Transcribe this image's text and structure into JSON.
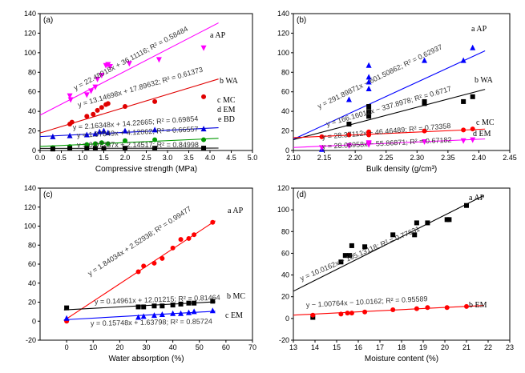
{
  "chart_data": [
    {
      "type": "scatter",
      "panel": "(a)",
      "xlabel": "Compressive strength (MPa)",
      "ylabel": "",
      "xlim": [
        0.0,
        5.0
      ],
      "ylim": [
        0,
        140
      ],
      "xticks": [
        0.0,
        0.5,
        1.0,
        1.5,
        2.0,
        2.5,
        3.0,
        3.5,
        4.0,
        4.5,
        5.0
      ],
      "yticks": [
        0,
        20,
        40,
        60,
        80,
        100,
        120,
        140
      ],
      "series": [
        {
          "name": "a AP",
          "color": "#ff00ff",
          "marker": "tri-down",
          "points": [
            [
              0.7,
              56
            ],
            [
              0.72,
              52
            ],
            [
              1.1,
              57
            ],
            [
              1.2,
              61
            ],
            [
              1.3,
              65
            ],
            [
              1.35,
              73
            ],
            [
              1.45,
              77
            ],
            [
              1.55,
              87
            ],
            [
              1.6,
              88
            ],
            [
              1.65,
              86
            ],
            [
              2.1,
              89
            ],
            [
              2.8,
              93
            ],
            [
              3.85,
              105
            ]
          ],
          "fit": {
            "slope": 22.48018,
            "intercept": 36.11116
          },
          "fit_range": [
            0.0,
            4.2
          ],
          "line_color": "#ff00ff",
          "equation": "y = 22.48018x + 36.11116; R² = 0.58484"
        },
        {
          "name": "b WA",
          "color": "#e00000",
          "marker": "circle",
          "points": [
            [
              0.7,
              27
            ],
            [
              0.75,
              29
            ],
            [
              1.1,
              35
            ],
            [
              1.25,
              37
            ],
            [
              1.35,
              41
            ],
            [
              1.45,
              44
            ],
            [
              1.55,
              47
            ],
            [
              1.6,
              48
            ],
            [
              2.0,
              45
            ],
            [
              2.7,
              50
            ],
            [
              3.85,
              55
            ]
          ],
          "fit": {
            "slope": 13.14698,
            "intercept": 17.89632
          },
          "fit_range": [
            0.0,
            4.2
          ],
          "line_color": "#e00000",
          "equation": "y = 13.14698x + 17.89632; R² = 0.61373"
        },
        {
          "name": "c MC",
          "color": "#0000dd",
          "marker": "tri-up",
          "points": [
            [
              0.3,
              14
            ],
            [
              0.7,
              15
            ],
            [
              1.1,
              16
            ],
            [
              1.3,
              17
            ],
            [
              1.4,
              19
            ],
            [
              1.5,
              20
            ],
            [
              1.6,
              18
            ],
            [
              2.0,
              20
            ],
            [
              2.7,
              21
            ],
            [
              3.85,
              22
            ]
          ],
          "fit": {
            "slope": 2.16348,
            "intercept": 14.22665
          },
          "fit_range": [
            0.0,
            4.2
          ],
          "line_color": "#0000dd",
          "equation": "y = 2.16348x + 14.22665; R² = 0.69854"
        },
        {
          "name": "d EM",
          "color": "#009900",
          "marker": "circle",
          "points": [
            [
              0.3,
              3
            ],
            [
              0.7,
              4
            ],
            [
              1.1,
              6
            ],
            [
              1.3,
              7
            ],
            [
              1.45,
              8
            ],
            [
              1.6,
              7
            ],
            [
              2.0,
              10
            ],
            [
              2.7,
              11
            ],
            [
              3.85,
              11
            ]
          ],
          "fit": {
            "slope": 1.97849,
            "intercept": 4.12062
          },
          "fit_range": [
            0.0,
            4.2
          ],
          "line_color": "#009900",
          "equation": "y = 1.97849x + 4.12062; R² = 0.66557"
        },
        {
          "name": "e BD",
          "color": "#000000",
          "marker": "square",
          "points": [
            [
              0.3,
              1.5
            ],
            [
              0.7,
              2
            ],
            [
              1.1,
              2.2
            ],
            [
              1.3,
              2.3
            ],
            [
              1.5,
              2.2
            ],
            [
              2.0,
              2.3
            ],
            [
              2.7,
              2.3
            ],
            [
              3.85,
              2.4
            ]
          ],
          "fit": {
            "slope": 0.07237,
            "intercept": 2.14517
          },
          "fit_range": [
            0.0,
            4.2
          ],
          "line_color": "#000000",
          "equation": "y = 0.07237x + 2.14517; R² = 0.84998"
        }
      ]
    },
    {
      "type": "scatter",
      "panel": "(b)",
      "xlabel": "Bulk density (g/cm³)",
      "ylabel": "",
      "xlim": [
        2.1,
        2.45
      ],
      "ylim": [
        0,
        140
      ],
      "xticks": [
        2.1,
        2.15,
        2.2,
        2.25,
        2.3,
        2.35,
        2.4,
        2.45
      ],
      "yticks": [
        0,
        20,
        40,
        60,
        80,
        100,
        120,
        140
      ],
      "series": [
        {
          "name": "a AP",
          "color": "#0000ff",
          "marker": "tri-up",
          "points": [
            [
              2.146,
              1
            ],
            [
              2.19,
              52
            ],
            [
              2.222,
              87
            ],
            [
              2.222,
              75
            ],
            [
              2.222,
              70
            ],
            [
              2.222,
              63
            ],
            [
              2.312,
              92
            ],
            [
              2.375,
              92
            ],
            [
              2.39,
              105
            ]
          ],
          "fit": {
            "slope": 291.89871,
            "intercept": -601.50862
          },
          "fit_range": [
            2.1,
            2.41
          ],
          "line_color": "#0000ff",
          "equation": "y = 291.89871x − 601.50862; R² = 0.62937"
        },
        {
          "name": "b WA",
          "color": "#000000",
          "marker": "square",
          "points": [
            [
              2.19,
              27
            ],
            [
              2.222,
              45
            ],
            [
              2.222,
              40
            ],
            [
              2.222,
              35
            ],
            [
              2.312,
              50
            ],
            [
              2.312,
              48
            ],
            [
              2.375,
              50
            ],
            [
              2.39,
              55
            ]
          ],
          "fit": {
            "slope": 166.16017,
            "intercept": -337.8978
          },
          "fit_range": [
            2.1,
            2.41
          ],
          "line_color": "#000000",
          "equation": "y = 166.16017x − 337.8978; R² = 0.6717"
        },
        {
          "name": "c MC",
          "color": "#ff0000",
          "marker": "circle",
          "points": [
            [
              2.146,
              14
            ],
            [
              2.19,
              16
            ],
            [
              2.222,
              16
            ],
            [
              2.222,
              18
            ],
            [
              2.222,
              19
            ],
            [
              2.312,
              20
            ],
            [
              2.375,
              21
            ],
            [
              2.39,
              22
            ]
          ],
          "fit": {
            "slope": 28.37112,
            "intercept": -46.46489
          },
          "fit_range": [
            2.1,
            2.41
          ],
          "line_color": "#ff0000",
          "equation": "y = 28.37112x − 46.46489; R² = 0.73358"
        },
        {
          "name": "d EM",
          "color": "#ff00ff",
          "marker": "tri-down",
          "points": [
            [
              2.146,
              3
            ],
            [
              2.19,
              5
            ],
            [
              2.222,
              6
            ],
            [
              2.222,
              7
            ],
            [
              2.222,
              8
            ],
            [
              2.312,
              9
            ],
            [
              2.375,
              10
            ],
            [
              2.39,
              11
            ]
          ],
          "fit": {
            "slope": 28.06958,
            "intercept": -55.86871
          },
          "fit_range": [
            2.1,
            2.41
          ],
          "line_color": "#ff00ff",
          "equation": "y = 28.06958x − 55.86871; R² = 0.67182"
        }
      ]
    },
    {
      "type": "scatter",
      "panel": "(c)",
      "xlabel": "Water absorption (%)",
      "ylabel": "",
      "xlim": [
        -10,
        70
      ],
      "ylim": [
        -20,
        140
      ],
      "xticks": [
        0,
        10,
        20,
        30,
        40,
        50,
        60,
        70
      ],
      "yticks": [
        -20,
        0,
        20,
        40,
        60,
        80,
        100,
        120,
        140
      ],
      "series": [
        {
          "name": "a AP",
          "color": "#ff0000",
          "marker": "circle",
          "points": [
            [
              0,
              0
            ],
            [
              27,
              52
            ],
            [
              29,
              58
            ],
            [
              33,
              61
            ],
            [
              36,
              66
            ],
            [
              40,
              77
            ],
            [
              43,
              86
            ],
            [
              46,
              87
            ],
            [
              48,
              91
            ],
            [
              55,
              104
            ]
          ],
          "fit": {
            "slope": 1.84034,
            "intercept": 2.52938
          },
          "fit_range": [
            -1,
            56
          ],
          "line_color": "#ff0000",
          "equation": "y = 1.84034x + 2.52938; R² = 0.99477"
        },
        {
          "name": "b MC",
          "color": "#000000",
          "marker": "square",
          "points": [
            [
              0,
              14
            ],
            [
              27,
              15
            ],
            [
              29,
              15
            ],
            [
              33,
              16
            ],
            [
              36,
              16
            ],
            [
              40,
              17
            ],
            [
              43,
              18
            ],
            [
              46,
              19
            ],
            [
              48,
              19
            ],
            [
              55,
              21
            ]
          ],
          "fit": {
            "slope": 0.14961,
            "intercept": 12.01215
          },
          "fit_range": [
            -1,
            56
          ],
          "line_color": "#000000",
          "equation": "y = 0.14961x + 12.01215; R² = 0.81464"
        },
        {
          "name": "c EM",
          "color": "#0000ff",
          "marker": "tri-up",
          "points": [
            [
              0,
              3
            ],
            [
              27,
              4
            ],
            [
              29,
              5
            ],
            [
              33,
              6
            ],
            [
              36,
              7
            ],
            [
              40,
              8
            ],
            [
              43,
              8
            ],
            [
              46,
              9
            ],
            [
              48,
              10
            ],
            [
              55,
              11
            ]
          ],
          "fit": {
            "slope": 0.15748,
            "intercept": 1.63798
          },
          "fit_range": [
            -1,
            56
          ],
          "line_color": "#0000ff",
          "equation": "y = 0.15748x + 1.63798; R² = 0.85724"
        }
      ]
    },
    {
      "type": "scatter",
      "panel": "(d)",
      "xlabel": "Moisture content (%)",
      "ylabel": "",
      "xlim": [
        13,
        23
      ],
      "ylim": [
        -20,
        120
      ],
      "xticks": [
        13,
        14,
        15,
        16,
        17,
        18,
        19,
        20,
        21,
        22,
        23
      ],
      "yticks": [
        -20,
        0,
        20,
        40,
        60,
        80,
        100,
        120
      ],
      "series": [
        {
          "name": "a AP",
          "color": "#000000",
          "marker": "square",
          "points": [
            [
              13.9,
              1
            ],
            [
              15.2,
              52
            ],
            [
              15.4,
              58
            ],
            [
              15.6,
              58
            ],
            [
              15.7,
              67
            ],
            [
              16.3,
              66
            ],
            [
              17.6,
              77
            ],
            [
              18.6,
              77
            ],
            [
              18.7,
              88
            ],
            [
              19.2,
              88
            ],
            [
              20.1,
              91
            ],
            [
              20.2,
              91
            ],
            [
              21.0,
              104
            ]
          ],
          "fit": {
            "slope": 10.0162,
            "intercept": -105.13118
          },
          "fit_range": [
            13.0,
            21.8
          ],
          "line_color": "#000000",
          "equation": "y = 10.0162x − 105.13118; R² = 0.77631"
        },
        {
          "name": "b EM",
          "color": "#ff0000",
          "marker": "circle",
          "points": [
            [
              13.9,
              3
            ],
            [
              15.2,
              4
            ],
            [
              15.5,
              5
            ],
            [
              15.7,
              5
            ],
            [
              16.3,
              6
            ],
            [
              17.6,
              8
            ],
            [
              18.7,
              9
            ],
            [
              19.2,
              10
            ],
            [
              20.1,
              10
            ],
            [
              21.0,
              11
            ]
          ],
          "fit": {
            "slope": 1.00764,
            "intercept": -10.0162
          },
          "fit_range": [
            13.0,
            21.8
          ],
          "line_color": "#ff0000",
          "equation": "y ~ 1.00764x − 10.0162; R² = 0.95589"
        }
      ]
    }
  ]
}
